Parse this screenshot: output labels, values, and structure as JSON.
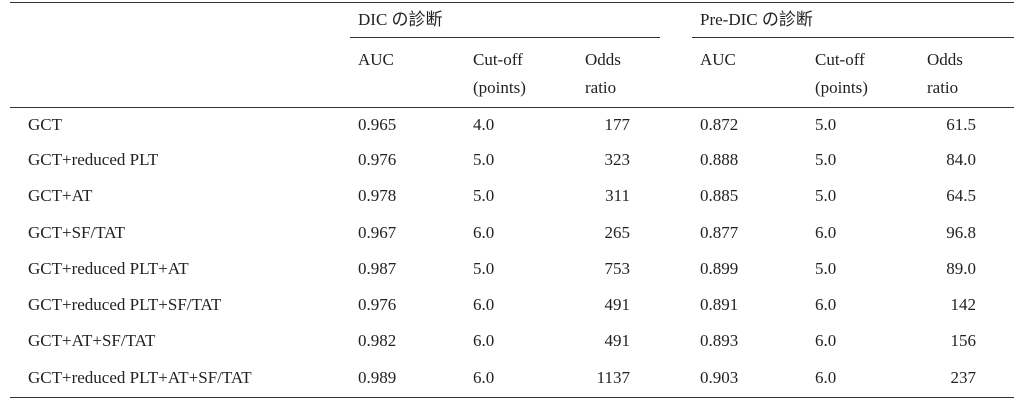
{
  "table": {
    "groups": [
      "DIC の診断",
      "Pre-DIC の診断"
    ],
    "columns": [
      [
        "AUC"
      ],
      [
        "Cut-off",
        "(points)"
      ],
      [
        "Odds",
        "ratio"
      ],
      [
        "AUC"
      ],
      [
        "Cut-off",
        "(points)"
      ],
      [
        "Odds",
        "ratio"
      ]
    ],
    "rows": [
      [
        "GCT",
        "0.965",
        "4.0",
        "177",
        "0.872",
        "5.0",
        "61.5"
      ],
      [
        "GCT+reduced PLT",
        "0.976",
        "5.0",
        "323",
        "0.888",
        "5.0",
        "84.0"
      ],
      [
        "GCT+AT",
        "0.978",
        "5.0",
        "311",
        "0.885",
        "5.0",
        "64.5"
      ],
      [
        "GCT+SF/TAT",
        "0.967",
        "6.0",
        "265",
        "0.877",
        "6.0",
        "96.8"
      ],
      [
        "GCT+reduced PLT+AT",
        "0.987",
        "5.0",
        "753",
        "0.899",
        "5.0",
        "89.0"
      ],
      [
        "GCT+reduced PLT+SF/TAT",
        "0.976",
        "6.0",
        "491",
        "0.891",
        "6.0",
        "142"
      ],
      [
        "GCT+AT+SF/TAT",
        "0.982",
        "6.0",
        "491",
        "0.893",
        "6.0",
        "156"
      ],
      [
        "GCT+reduced PLT+AT+SF/TAT",
        "0.989",
        "6.0",
        "1137",
        "0.903",
        "6.0",
        "237"
      ]
    ]
  }
}
